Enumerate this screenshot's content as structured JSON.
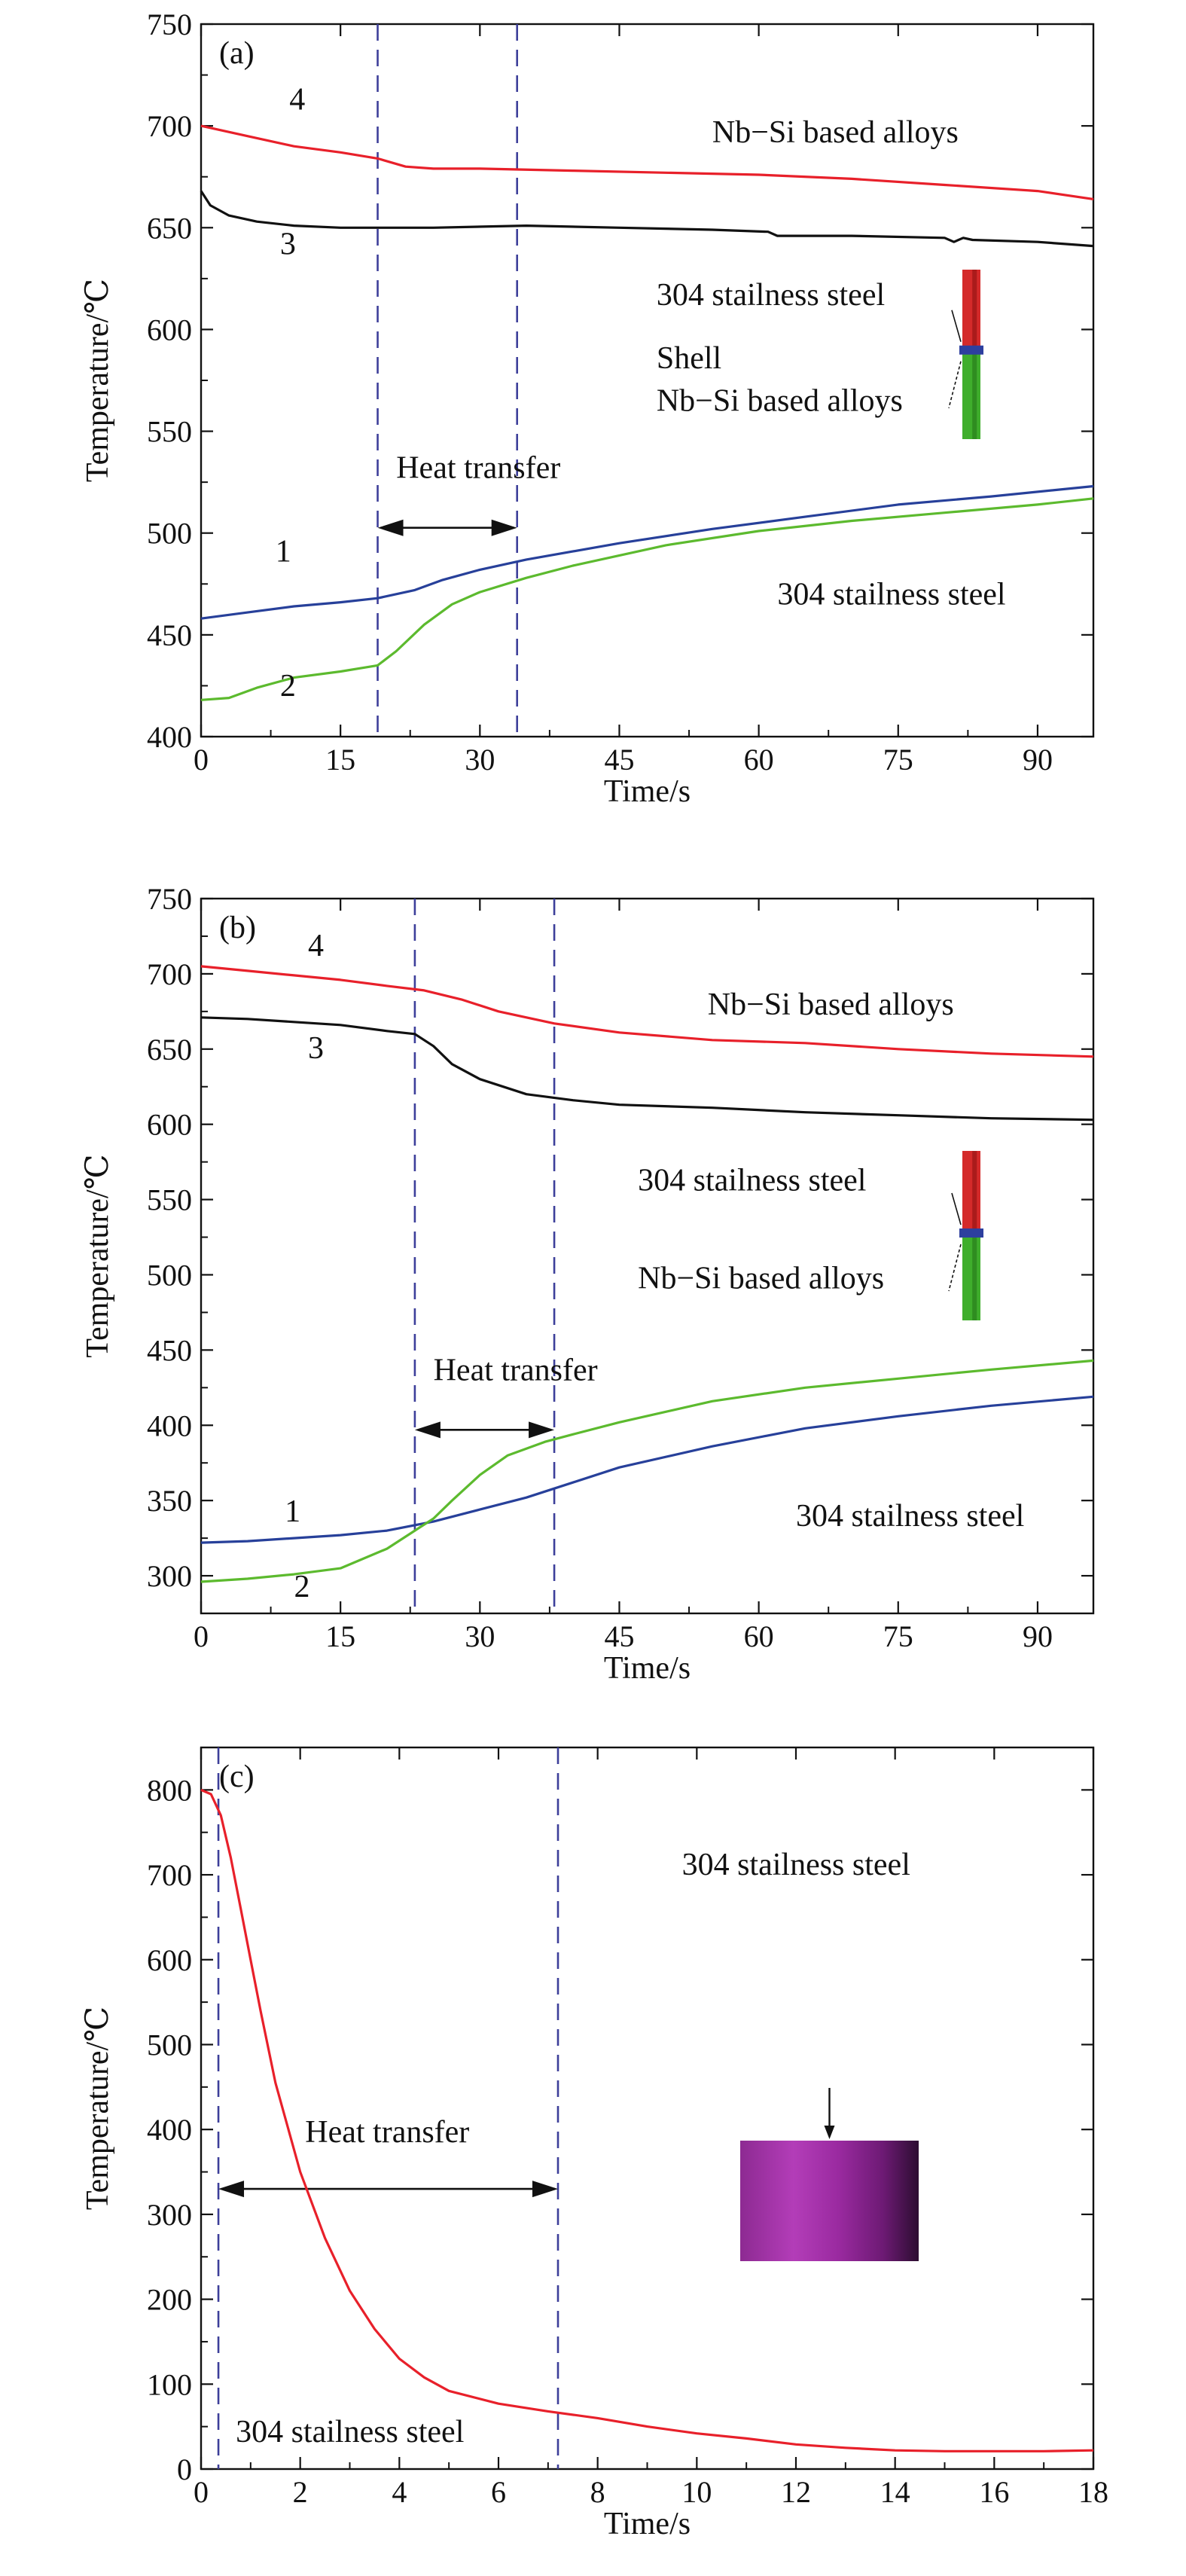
{
  "chart_data": [
    {
      "type": "line",
      "panel_label": "(a)",
      "xlabel": "Time/s",
      "ylabel": "Temperature/℃",
      "xlim": [
        0,
        96
      ],
      "ylim": [
        400,
        750
      ],
      "xticks": [
        0,
        15,
        30,
        45,
        60,
        75,
        90
      ],
      "yticks": [
        400,
        450,
        500,
        550,
        600,
        650,
        700,
        750
      ],
      "vlines": [
        19,
        34
      ],
      "series": [
        {
          "name": "4",
          "color": "#e8202a",
          "x": [
            0,
            5,
            10,
            15,
            19,
            22,
            25,
            30,
            40,
            50,
            60,
            70,
            80,
            90,
            96
          ],
          "y": [
            700,
            695,
            690,
            687,
            684,
            680,
            679,
            679,
            678,
            677,
            676,
            674,
            671,
            668,
            664
          ]
        },
        {
          "name": "3",
          "color": "#111111",
          "x": [
            0,
            1,
            3,
            6,
            10,
            15,
            19,
            25,
            35,
            45,
            55,
            61,
            62,
            70,
            80,
            81,
            82,
            83,
            90,
            96
          ],
          "y": [
            668,
            661,
            656,
            653,
            651,
            650,
            650,
            650,
            651,
            650,
            649,
            648,
            646,
            646,
            645,
            643,
            645,
            644,
            643,
            641
          ]
        },
        {
          "name": "1",
          "color": "#27409a",
          "x": [
            0,
            5,
            10,
            15,
            19,
            23,
            26,
            30,
            35,
            45,
            55,
            65,
            75,
            85,
            96
          ],
          "y": [
            458,
            461,
            464,
            466,
            468,
            472,
            477,
            482,
            487,
            495,
            502,
            508,
            514,
            518,
            523
          ]
        },
        {
          "name": "2",
          "color": "#5cba2e",
          "x": [
            0,
            3,
            6,
            10,
            15,
            19,
            21,
            24,
            27,
            30,
            35,
            40,
            50,
            60,
            70,
            80,
            90,
            96
          ],
          "y": [
            418,
            419,
            424,
            429,
            432,
            435,
            442,
            455,
            465,
            471,
            478,
            484,
            494,
            501,
            506,
            510,
            514,
            517
          ]
        }
      ],
      "annotations": [
        {
          "text": "4",
          "x": 9.5,
          "y": 708
        },
        {
          "text": "3",
          "x": 8.5,
          "y": 637
        },
        {
          "text": "1",
          "x": 8,
          "y": 486
        },
        {
          "text": "2",
          "x": 8.5,
          "y": 420
        },
        {
          "text": "Nb−Si based alloys",
          "x": 55,
          "y": 692
        },
        {
          "text": "304 stailness steel",
          "x": 62,
          "y": 465
        },
        {
          "text": "Heat transfer",
          "x": 21,
          "y": 527
        },
        {
          "text": "304 stailness steel",
          "x": 49,
          "y": 612
        },
        {
          "text": "Shell",
          "x": 49,
          "y": 581
        },
        {
          "text": "Nb−Si based alloys",
          "x": 49,
          "y": 560
        }
      ]
    },
    {
      "type": "line",
      "panel_label": "(b)",
      "xlabel": "Time/s",
      "ylabel": "Temperature/℃",
      "xlim": [
        0,
        96
      ],
      "ylim": [
        275,
        750
      ],
      "xticks": [
        0,
        15,
        30,
        45,
        60,
        75,
        90
      ],
      "yticks": [
        300,
        350,
        400,
        450,
        500,
        550,
        600,
        650,
        700,
        750
      ],
      "vlines": [
        23,
        38
      ],
      "series": [
        {
          "name": "4",
          "color": "#e8202a",
          "x": [
            0,
            5,
            10,
            15,
            20,
            24,
            28,
            32,
            38,
            45,
            55,
            65,
            75,
            85,
            96
          ],
          "y": [
            705,
            702,
            699,
            696,
            692,
            689,
            683,
            675,
            667,
            661,
            656,
            654,
            650,
            647,
            645
          ]
        },
        {
          "name": "3",
          "color": "#111111",
          "x": [
            0,
            5,
            10,
            15,
            20,
            23,
            25,
            27,
            30,
            35,
            40,
            45,
            55,
            65,
            75,
            85,
            96
          ],
          "y": [
            671,
            670,
            668,
            666,
            662,
            660,
            652,
            640,
            630,
            620,
            616,
            613,
            611,
            608,
            606,
            604,
            603
          ]
        },
        {
          "name": "1",
          "color": "#27409a",
          "x": [
            0,
            5,
            10,
            15,
            20,
            25,
            30,
            35,
            40,
            45,
            55,
            65,
            75,
            85,
            96
          ],
          "y": [
            322,
            323,
            325,
            327,
            330,
            336,
            344,
            352,
            362,
            372,
            386,
            398,
            406,
            413,
            419
          ]
        },
        {
          "name": "2",
          "color": "#5cba2e",
          "x": [
            0,
            5,
            10,
            15,
            20,
            23,
            25,
            27,
            30,
            33,
            37,
            40,
            45,
            55,
            65,
            75,
            85,
            96
          ],
          "y": [
            296,
            298,
            301,
            305,
            318,
            330,
            338,
            350,
            367,
            380,
            389,
            394,
            402,
            416,
            425,
            431,
            437,
            443
          ]
        }
      ],
      "annotations": [
        {
          "text": "4",
          "x": 11.5,
          "y": 712
        },
        {
          "text": "3",
          "x": 11.5,
          "y": 644
        },
        {
          "text": "1",
          "x": 9,
          "y": 336
        },
        {
          "text": "2",
          "x": 10,
          "y": 286
        },
        {
          "text": "Nb−Si based alloys",
          "x": 54.5,
          "y": 673
        },
        {
          "text": "304 stailness steel",
          "x": 64,
          "y": 333
        },
        {
          "text": "Heat transfer",
          "x": 25,
          "y": 430
        },
        {
          "text": "304 stailness steel",
          "x": 47,
          "y": 556
        },
        {
          "text": "Nb−Si based alloys",
          "x": 47,
          "y": 491
        }
      ]
    },
    {
      "type": "line",
      "panel_label": "(c)",
      "xlabel": "Time/s",
      "ylabel": "Temperature/℃",
      "xlim": [
        0,
        18
      ],
      "ylim": [
        0,
        850
      ],
      "xticks": [
        0,
        2,
        4,
        6,
        8,
        10,
        12,
        14,
        16,
        18
      ],
      "yticks": [
        0,
        100,
        200,
        300,
        400,
        500,
        600,
        700,
        800
      ],
      "vlines": [
        0.35,
        7.2
      ],
      "series": [
        {
          "name": "",
          "color": "#e8202a",
          "x": [
            0,
            0.2,
            0.4,
            0.6,
            0.8,
            1,
            1.2,
            1.5,
            2,
            2.5,
            3,
            3.5,
            4,
            4.5,
            5,
            6,
            7,
            8,
            9,
            10,
            11,
            12,
            13,
            14,
            15,
            16,
            17,
            18
          ],
          "y": [
            800,
            795,
            770,
            720,
            660,
            600,
            540,
            455,
            350,
            272,
            210,
            165,
            130,
            108,
            92,
            77,
            68,
            60,
            50,
            42,
            36,
            29,
            25,
            22,
            21,
            21,
            21,
            22
          ]
        }
      ],
      "annotations": [
        {
          "text": "Heat transfer",
          "x": 2.1,
          "y": 385
        },
        {
          "text": "304 stailness steel",
          "x": 9.7,
          "y": 700
        },
        {
          "text": "304 stailness steel",
          "x": 0.7,
          "y": 32
        }
      ]
    }
  ]
}
